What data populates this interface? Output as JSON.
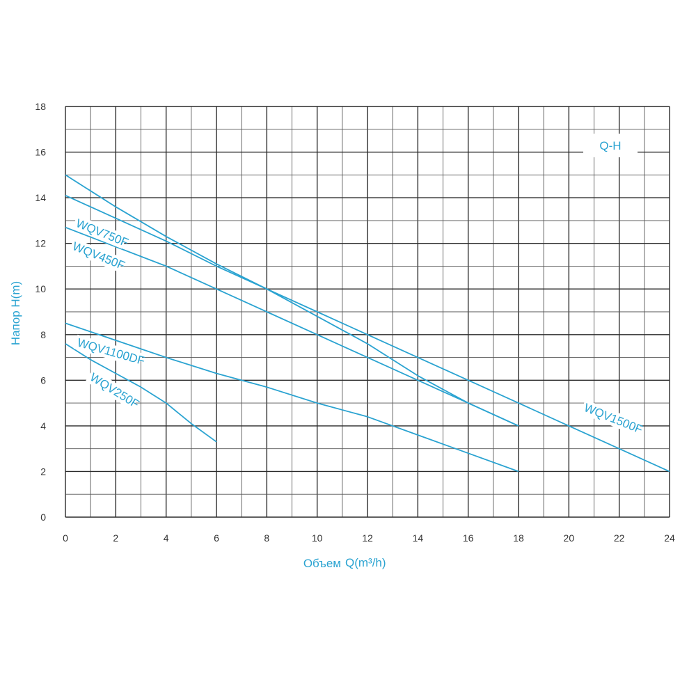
{
  "chart_data": {
    "type": "line",
    "title": "Q-H",
    "xlabel": "Объем",
    "xlabel_unit": "Q(m³/h)",
    "ylabel": "Напор H(m)",
    "xlim": [
      0,
      24
    ],
    "ylim": [
      0,
      18
    ],
    "x_ticks": [
      0,
      2,
      4,
      6,
      8,
      10,
      12,
      14,
      16,
      18,
      20,
      22,
      24
    ],
    "y_ticks": [
      0,
      2,
      4,
      6,
      8,
      10,
      12,
      14,
      16,
      18
    ],
    "grid": true,
    "line_color": "#2aa3d1",
    "series": [
      {
        "name": "WQV750F",
        "x": [
          0,
          2,
          4,
          6,
          8,
          10,
          12,
          14,
          16,
          18
        ],
        "y": [
          15.0,
          13.6,
          12.3,
          11.1,
          10.0,
          8.8,
          7.6,
          6.2,
          5.0,
          4.0
        ]
      },
      {
        "name": "WQV450F",
        "x": [
          0,
          4,
          6,
          8,
          10,
          12,
          14,
          16,
          18
        ],
        "y": [
          12.7,
          11.0,
          10.0,
          9.0,
          8.0,
          7.0,
          6.0,
          5.0,
          4.0
        ]
      },
      {
        "name": "WQV1500F",
        "x": [
          0,
          2,
          4,
          6,
          8,
          10,
          12,
          14,
          16,
          18,
          20,
          22,
          24
        ],
        "y": [
          14.1,
          13.1,
          12.1,
          11.0,
          10.0,
          9.0,
          8.0,
          7.0,
          6.0,
          5.0,
          4.0,
          3.0,
          2.0
        ]
      },
      {
        "name": "WQV1100DF",
        "x": [
          0,
          4,
          6,
          8,
          10,
          12,
          14,
          16,
          18
        ],
        "y": [
          8.5,
          7.0,
          6.3,
          5.7,
          5.0,
          4.4,
          3.6,
          2.8,
          2.0
        ]
      },
      {
        "name": "WQV250F",
        "x": [
          0,
          1,
          2,
          3,
          4,
          5,
          6
        ],
        "y": [
          7.6,
          6.9,
          6.3,
          5.7,
          5.0,
          4.1,
          3.3
        ]
      }
    ]
  }
}
